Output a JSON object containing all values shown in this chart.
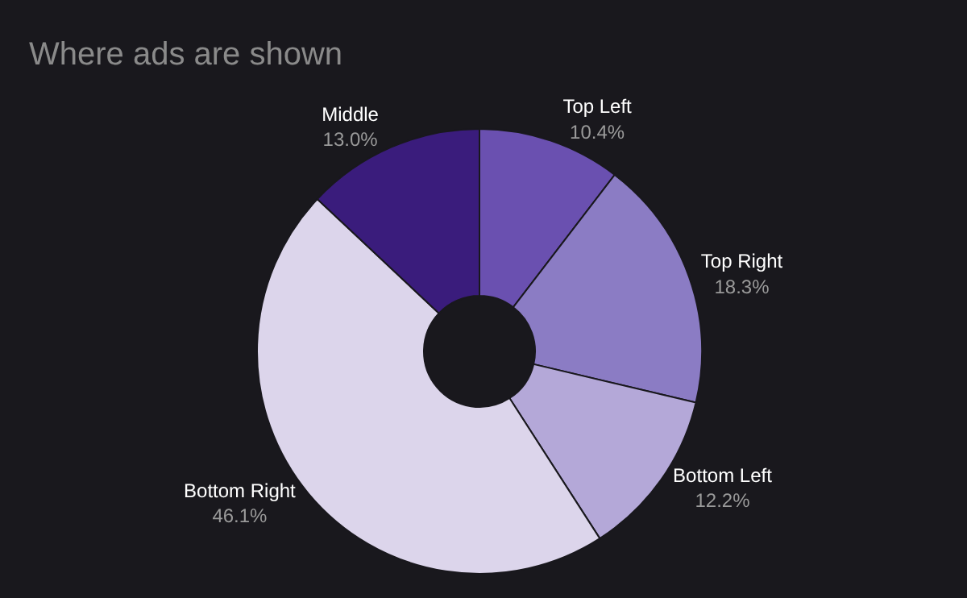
{
  "chart_data": {
    "type": "donut",
    "title": "Where ads are shown",
    "categories": [
      "Top Left",
      "Top Right",
      "Bottom Left",
      "Bottom Right",
      "Middle"
    ],
    "values": [
      10.4,
      18.3,
      12.2,
      46.1,
      13.0
    ],
    "value_labels": [
      "10.4%",
      "18.3%",
      "12.2%",
      "46.1%",
      "13.0%"
    ],
    "colors": [
      "#6a50b0",
      "#8b7cc4",
      "#b4a8d8",
      "#dcd5eb",
      "#3a1c7c"
    ],
    "legend": false
  }
}
